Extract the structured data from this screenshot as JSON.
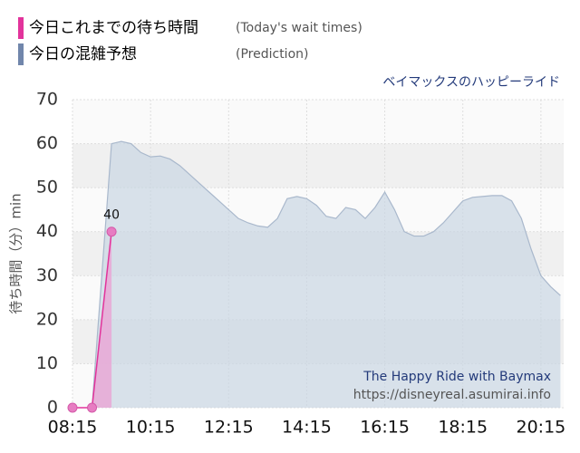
{
  "chart_data": {
    "type": "area",
    "subtitle": "ベイマックスのハッピーライド",
    "y_label": "待ち時間（分）min",
    "watermark": [
      "The Happy Ride with Baymax",
      "https://disneyreal.asumirai.info"
    ],
    "xlim": [
      "08:15",
      "20:50"
    ],
    "xticks": [
      "08:15",
      "10:15",
      "12:15",
      "14:15",
      "16:15",
      "18:15",
      "20:15"
    ],
    "ylim": [
      0,
      70
    ],
    "yticks": [
      0,
      10,
      20,
      30,
      40,
      50,
      60,
      70
    ],
    "grid": true,
    "series": [
      {
        "name": "今日これまでの待ち時間",
        "note": "(Today's wait times)",
        "color": "#e2339b",
        "x": [
          "08:15",
          "08:45",
          "09:15"
        ],
        "values": [
          0,
          0,
          40
        ],
        "value_labels": [
          null,
          null,
          "40"
        ]
      },
      {
        "name": "今日の混雑予想",
        "note": "(Prediction)",
        "color": "#7186ab",
        "x": [
          "08:45",
          "09:15",
          "09:30",
          "09:45",
          "10:00",
          "10:15",
          "10:30",
          "10:45",
          "11:00",
          "11:15",
          "11:30",
          "11:45",
          "12:00",
          "12:15",
          "12:30",
          "12:45",
          "13:00",
          "13:15",
          "13:30",
          "13:45",
          "14:00",
          "14:15",
          "14:30",
          "14:45",
          "15:00",
          "15:15",
          "15:30",
          "15:45",
          "16:00",
          "16:15",
          "16:30",
          "16:45",
          "17:00",
          "17:15",
          "17:30",
          "17:45",
          "18:00",
          "18:15",
          "18:30",
          "18:45",
          "19:00",
          "19:15",
          "19:30",
          "19:45",
          "20:00",
          "20:15",
          "20:30",
          "20:45"
        ],
        "values": [
          0,
          60,
          60.5,
          60,
          58,
          57,
          57.2,
          56.5,
          55,
          53,
          51,
          49,
          47,
          45,
          43,
          42,
          41.3,
          41,
          43,
          47.5,
          48,
          47.5,
          46,
          43.5,
          43,
          45.5,
          45,
          43,
          45.5,
          49,
          45,
          40,
          39,
          39,
          40,
          42,
          44.5,
          47,
          47.8,
          48,
          48.2,
          48.2,
          47,
          43,
          36,
          30,
          27.5,
          25.5
        ]
      }
    ]
  }
}
